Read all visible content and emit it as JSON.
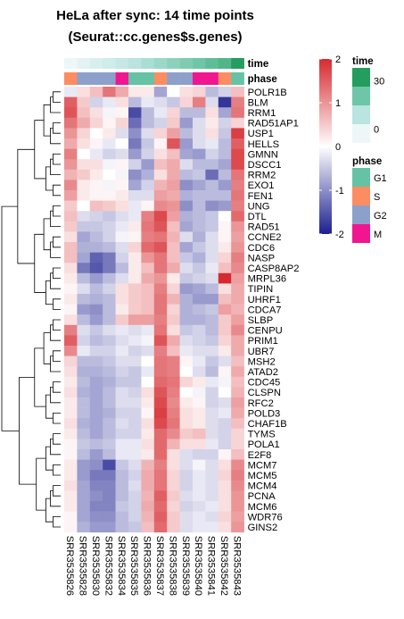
{
  "title_line1": "HeLa after sync: 14 time points",
  "title_line2": "(Seurat::cc.genes$s.genes)",
  "chart_data": {
    "type": "heatmap",
    "title": "HeLa after sync: 14 time points",
    "subtitle": "(Seurat::cc.genes$s.genes)",
    "columns": [
      "SRR3535826",
      "SRR3535828",
      "SRR3535830",
      "SRR3535832",
      "SRR3535834",
      "SRR3535835",
      "SRR3535836",
      "SRR3535837",
      "SRR3535838",
      "SRR3535839",
      "SRR3535840",
      "SRR3535841",
      "SRR3535842",
      "SRR3535843"
    ],
    "rows": [
      "POLR1B",
      "BLM",
      "RRM1",
      "RAD51AP1",
      "USP1",
      "HELLS",
      "GMNN",
      "DSCC1",
      "RRM2",
      "EXO1",
      "FEN1",
      "UNG",
      "DTL",
      "RAD51",
      "CCNE2",
      "CDC6",
      "NASP",
      "CASP8AP2",
      "MRPL36",
      "TIPIN",
      "UHRF1",
      "CDCA7",
      "SLBP",
      "CENPU",
      "PRIM1",
      "UBR7",
      "MSH2",
      "ATAD2",
      "CDC45",
      "CLSPN",
      "RFC2",
      "POLD3",
      "CHAF1B",
      "TYMS",
      "POLA1",
      "E2F8",
      "MCM7",
      "MCM5",
      "MCM4",
      "PCNA",
      "MCM6",
      "WDR76",
      "GINS2"
    ],
    "annotations": {
      "time": {
        "name": "time",
        "values": [
          0,
          2,
          4,
          6,
          8,
          10,
          12,
          14,
          16,
          18,
          20,
          22,
          24,
          30
        ]
      },
      "phase": {
        "name": "phase",
        "values": [
          "S",
          "G2",
          "G2",
          "G2",
          "M",
          "G1",
          "G1",
          "S",
          "G2",
          "G2",
          "M",
          "M",
          "S",
          "G1"
        ]
      }
    },
    "values": [
      [
        -0.2,
        0.3,
        0.6,
        1.3,
        0.8,
        0.2,
        0.2,
        -0.8,
        0.0,
        0.3,
        0.4,
        -0.6,
        -0.4,
        0.6
      ],
      [
        1.5,
        0.5,
        -0.4,
        -0.2,
        0.3,
        -0.6,
        -0.2,
        -0.3,
        -0.5,
        0.4,
        1.2,
        -0.3,
        -1.8,
        1.2
      ],
      [
        1.6,
        0.6,
        0.3,
        -0.1,
        0.1,
        -1.6,
        -0.6,
        -0.2,
        0.4,
        -0.6,
        -0.6,
        0.3,
        -0.8,
        1.3
      ],
      [
        1.3,
        0.8,
        0.4,
        0.1,
        0.4,
        -1.3,
        -0.6,
        -0.4,
        0.5,
        -0.9,
        -0.3,
        0.2,
        -0.4,
        0.4
      ],
      [
        1.0,
        0.4,
        0.0,
        0.2,
        -0.3,
        -1.0,
        -0.3,
        0.4,
        0.9,
        -0.6,
        -0.3,
        0.3,
        -0.5,
        1.8
      ],
      [
        0.8,
        0.3,
        0.1,
        -0.2,
        0.0,
        -1.2,
        -0.5,
        0.1,
        1.6,
        -0.9,
        -0.3,
        -0.2,
        -0.6,
        1.5
      ],
      [
        1.2,
        0.0,
        -0.2,
        -0.4,
        -0.3,
        -0.9,
        -0.4,
        0.3,
        0.6,
        -0.8,
        -0.9,
        -0.4,
        -0.6,
        1.7
      ],
      [
        1.0,
        0.3,
        0.3,
        -0.1,
        0.1,
        -0.4,
        -0.9,
        0.6,
        0.8,
        -0.3,
        -0.6,
        -0.6,
        -0.8,
        1.7
      ],
      [
        0.7,
        0.5,
        0.2,
        0.0,
        -0.1,
        -1.0,
        -0.7,
        0.3,
        0.8,
        -0.6,
        -0.5,
        -1.3,
        -0.6,
        1.3
      ],
      [
        1.1,
        0.2,
        0.1,
        -0.1,
        0.1,
        -0.8,
        -0.4,
        0.7,
        0.9,
        -1.0,
        -0.8,
        -0.6,
        -0.9,
        1.2
      ],
      [
        0.9,
        0.2,
        0.1,
        0.1,
        0.2,
        -0.3,
        -0.3,
        0.9,
        0.8,
        -0.7,
        -0.6,
        -0.6,
        -0.6,
        1.3
      ],
      [
        0.5,
        0.0,
        0.6,
        0.5,
        0.3,
        -0.2,
        0.1,
        1.1,
        1.0,
        -1.0,
        -0.6,
        -1.0,
        -0.9,
        1.2
      ],
      [
        0.6,
        -0.3,
        -0.4,
        -0.5,
        -0.3,
        -0.2,
        1.2,
        1.7,
        0.9,
        -0.7,
        -0.6,
        -0.5,
        0.0,
        1.4
      ],
      [
        0.5,
        -0.5,
        -0.5,
        -0.4,
        -0.2,
        0.2,
        1.3,
        1.6,
        0.6,
        -0.8,
        -0.6,
        -0.5,
        0.1,
        1.0
      ],
      [
        0.3,
        -0.8,
        -0.6,
        -0.4,
        -0.1,
        0.1,
        1.2,
        1.3,
        0.7,
        -0.3,
        -0.7,
        -0.3,
        0.1,
        0.9
      ],
      [
        0.6,
        -0.7,
        -0.7,
        -0.6,
        -0.3,
        0.4,
        1.4,
        1.6,
        0.6,
        -0.8,
        -0.5,
        -0.3,
        0.2,
        1.0
      ],
      [
        0.6,
        -0.8,
        -1.4,
        -1.2,
        -0.4,
        0.2,
        1.0,
        1.3,
        0.6,
        -0.5,
        -0.7,
        -0.3,
        0.4,
        1.2
      ],
      [
        0.3,
        -1.2,
        -1.5,
        -1.2,
        -0.6,
        0.2,
        0.6,
        1.3,
        0.8,
        -0.3,
        -0.5,
        -0.2,
        0.6,
        1.1
      ],
      [
        0.2,
        -0.6,
        -0.9,
        -0.6,
        -0.3,
        0.2,
        0.8,
        1.0,
        0.2,
        -0.5,
        -0.4,
        -0.3,
        2.0,
        0.9
      ],
      [
        0.1,
        -0.3,
        -0.6,
        -0.4,
        0.3,
        0.5,
        0.6,
        1.2,
        0.4,
        -0.9,
        -0.8,
        -0.6,
        0.3,
        0.8
      ],
      [
        0.2,
        -0.6,
        -0.7,
        -0.6,
        0.3,
        0.5,
        0.6,
        1.3,
        0.7,
        -0.7,
        -0.9,
        -0.9,
        0.6,
        0.8
      ],
      [
        0.1,
        -0.9,
        -1.0,
        -0.6,
        0.2,
        0.5,
        0.6,
        1.3,
        0.4,
        -0.7,
        -0.6,
        -0.5,
        0.9,
        0.7
      ],
      [
        0.3,
        -0.6,
        -0.9,
        -0.6,
        0.5,
        0.9,
        0.9,
        1.2,
        0.5,
        -0.7,
        -0.7,
        -0.6,
        0.5,
        0.9
      ],
      [
        1.2,
        -0.3,
        -0.5,
        -0.3,
        -0.2,
        -0.3,
        -0.2,
        1.3,
        0.3,
        -0.5,
        -0.4,
        -0.6,
        0.5,
        1.1
      ],
      [
        1.5,
        -0.4,
        -0.6,
        -0.5,
        -0.3,
        -0.2,
        -0.1,
        1.6,
        0.8,
        -0.3,
        -0.4,
        -0.5,
        0.4,
        0.8
      ],
      [
        1.1,
        -0.2,
        -0.4,
        -0.4,
        -0.2,
        -0.4,
        -0.3,
        1.2,
        0.6,
        -0.2,
        -0.3,
        -0.3,
        0.2,
        0.8
      ],
      [
        0.4,
        -0.6,
        -0.6,
        -0.5,
        -0.3,
        -0.3,
        0.0,
        1.3,
        1.2,
        0.1,
        -0.2,
        -0.5,
        -0.3,
        0.6
      ],
      [
        0.3,
        -0.7,
        -0.7,
        -0.6,
        -0.4,
        -0.5,
        -0.2,
        1.3,
        1.2,
        0.0,
        -0.3,
        -0.6,
        0.1,
        0.8
      ],
      [
        0.2,
        -0.6,
        -0.8,
        -0.7,
        -0.5,
        -0.5,
        0.0,
        1.4,
        1.3,
        0.4,
        0.2,
        -0.2,
        -0.1,
        0.6
      ],
      [
        0.3,
        -0.7,
        -0.8,
        -0.6,
        -0.3,
        -0.4,
        0.3,
        1.6,
        1.2,
        0.0,
        -0.1,
        -0.4,
        0.0,
        0.7
      ],
      [
        0.2,
        -0.6,
        -0.8,
        -0.6,
        -0.3,
        -0.3,
        0.2,
        1.7,
        1.1,
        0.2,
        0.1,
        -0.4,
        -0.3,
        0.9
      ],
      [
        0.2,
        -0.6,
        -0.8,
        -0.7,
        -0.4,
        -0.4,
        0.1,
        1.8,
        1.2,
        0.3,
        0.2,
        -0.3,
        -0.2,
        0.8
      ],
      [
        0.3,
        -0.7,
        -0.8,
        -0.6,
        -0.3,
        -0.4,
        0.3,
        1.7,
        1.3,
        0.3,
        0.2,
        -0.3,
        -0.4,
        0.6
      ],
      [
        0.2,
        -0.6,
        -0.8,
        -0.6,
        -0.4,
        -0.4,
        0.2,
        1.4,
        1.1,
        0.5,
        0.6,
        -0.3,
        -0.4,
        0.4
      ],
      [
        0.1,
        -0.5,
        -0.6,
        -0.5,
        -0.2,
        -0.2,
        0.3,
        1.4,
        0.7,
        0.3,
        0.3,
        -0.2,
        -0.4,
        0.4
      ],
      [
        0.1,
        -0.6,
        -0.9,
        -0.6,
        -0.2,
        -0.2,
        0.2,
        1.4,
        0.3,
        -0.3,
        -0.4,
        -0.4,
        0.1,
        0.6
      ],
      [
        0.2,
        -0.9,
        -1.0,
        -1.6,
        -0.5,
        -0.3,
        0.7,
        1.2,
        0.3,
        -0.3,
        -0.1,
        -0.3,
        0.3,
        1.1
      ],
      [
        0.2,
        -0.9,
        -1.2,
        -1.2,
        -0.6,
        -0.4,
        0.8,
        1.3,
        0.4,
        -0.4,
        -0.2,
        -0.3,
        0.4,
        1.2
      ],
      [
        0.3,
        -0.8,
        -1.1,
        -1.1,
        -0.6,
        -0.3,
        0.8,
        1.3,
        0.4,
        -0.4,
        -0.2,
        -0.3,
        0.3,
        1.1
      ],
      [
        0.2,
        -0.8,
        -1.0,
        -1.1,
        -0.6,
        -0.4,
        0.7,
        1.5,
        0.5,
        -0.3,
        -0.2,
        -0.3,
        0.3,
        1.0
      ],
      [
        0.2,
        -0.8,
        -1.1,
        -1.1,
        -0.5,
        -0.4,
        0.8,
        1.4,
        0.4,
        -0.4,
        -0.3,
        -0.2,
        0.3,
        1.0
      ],
      [
        0.1,
        -0.8,
        -1.0,
        -1.0,
        -0.6,
        -0.4,
        0.7,
        1.5,
        0.5,
        -0.3,
        -0.2,
        -0.3,
        0.4,
        0.9
      ],
      [
        0.1,
        -0.7,
        -0.9,
        -0.9,
        -0.6,
        -0.5,
        0.6,
        1.4,
        0.5,
        -0.3,
        -0.2,
        -0.2,
        0.3,
        1.0
      ]
    ],
    "color_scale": {
      "min": -2,
      "mid": 0,
      "max": 2,
      "low_color": "#1c1f8f",
      "mid_color": "#ffffff",
      "high_color": "#d62a2f",
      "ticks": [
        2,
        1,
        0,
        -1,
        -2
      ]
    },
    "legends": {
      "time": {
        "title": "time",
        "ticks": [
          30,
          0
        ],
        "colors": [
          "#249d5f",
          "#6fc5a7",
          "#b9e4df",
          "#eef7f8"
        ]
      },
      "phase": {
        "title": "phase",
        "levels": [
          "G1",
          "S",
          "G2",
          "M"
        ],
        "colors": {
          "G1": "#66c2a5",
          "S": "#fc8d62",
          "G2": "#8da0cb",
          "M": "#f0168f"
        }
      }
    },
    "dendrogram_side": "left"
  }
}
